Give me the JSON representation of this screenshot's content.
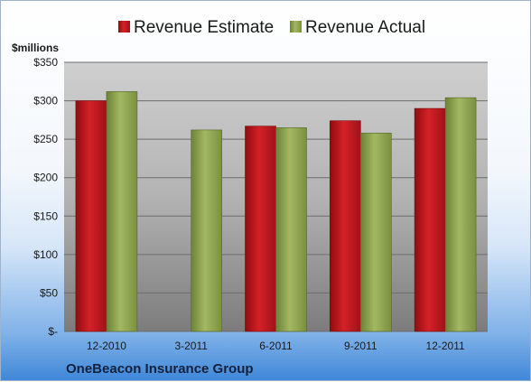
{
  "chart_data": {
    "type": "bar",
    "unit_label": "$millions",
    "categories": [
      "12-2010",
      "3-2011",
      "6-2011",
      "9-2011",
      "12-2011"
    ],
    "series": [
      {
        "name": "Revenue Estimate",
        "values": [
          300,
          null,
          267,
          274,
          290
        ],
        "color": "#c0161a"
      },
      {
        "name": "Revenue Actual",
        "values": [
          312,
          262,
          265,
          258,
          304
        ],
        "color": "#8aa04a"
      }
    ],
    "yticks": [
      "$-",
      "$50",
      "$100",
      "$150",
      "$200",
      "$250",
      "$300",
      "$350"
    ],
    "ylim": [
      0,
      350
    ],
    "grid": true,
    "legend_position": "top",
    "company": "OneBeacon Insurance Group"
  }
}
